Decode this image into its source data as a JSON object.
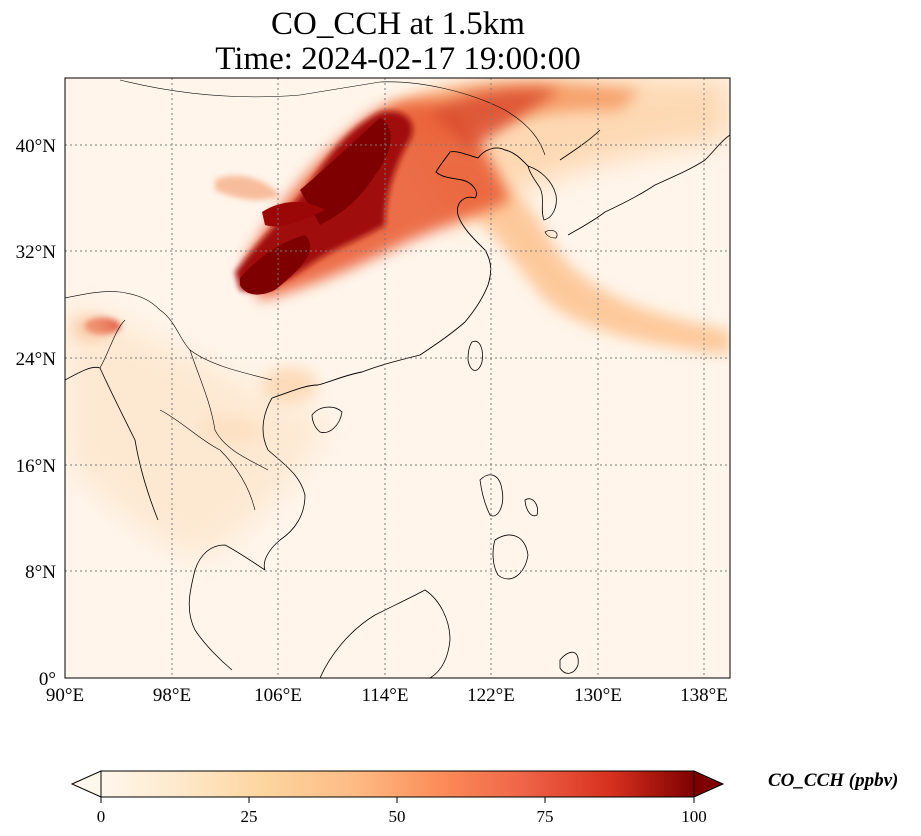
{
  "title": {
    "line1": "CO_CCH at 1.5km",
    "line2": "Time: 2024-02-17 19:00:00"
  },
  "map": {
    "projection": "PlateCarree",
    "lon_range": [
      90,
      140
    ],
    "lat_range": [
      0,
      45
    ],
    "gridlines": "dotted",
    "x_ticks": [
      "90°E",
      "98°E",
      "106°E",
      "114°E",
      "122°E",
      "130°E",
      "138°E"
    ],
    "y_ticks": [
      "0°",
      "8°N",
      "16°N",
      "24°N",
      "32°N",
      "40°N"
    ],
    "field_colormap": "OrRd"
  },
  "colorbar": {
    "label": "CO_CCH (ppbv)",
    "ticks": [
      "0",
      "25",
      "50",
      "75",
      "100"
    ],
    "vmin": 0,
    "vmax": 100,
    "extend": "both"
  }
}
